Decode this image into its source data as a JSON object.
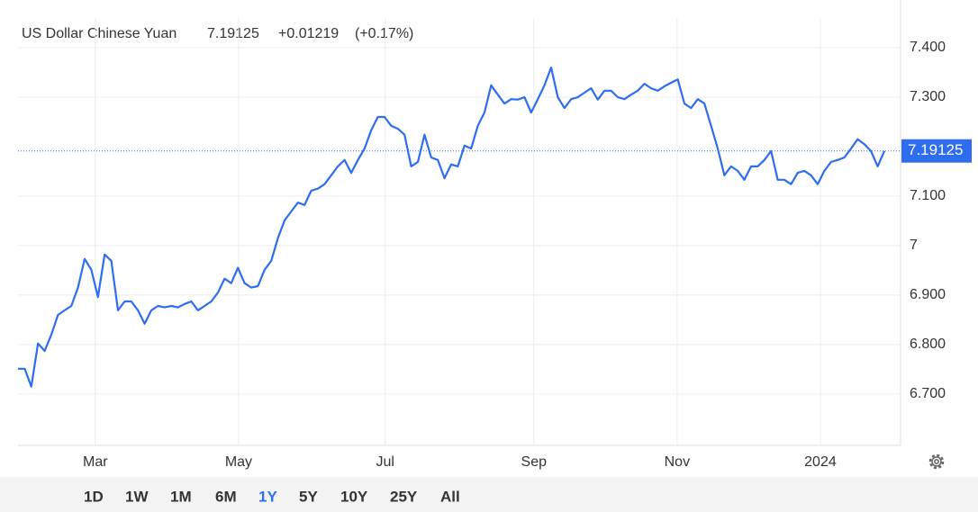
{
  "chart_data": {
    "type": "line",
    "title": "US Dollar Chinese Yuan",
    "change": "+0.01219",
    "change_percent": "(+0.17%)",
    "color": "#2f6df0",
    "change_color": "#3aa43a",
    "values": [
      6.751,
      6.751,
      6.715,
      6.802,
      6.787,
      6.82,
      6.86,
      6.869,
      6.878,
      6.915,
      6.973,
      6.951,
      6.896,
      6.982,
      6.969,
      6.869,
      6.887,
      6.887,
      6.869,
      6.842,
      6.869,
      6.878,
      6.875,
      6.878,
      6.875,
      6.882,
      6.887,
      6.869,
      6.878,
      6.887,
      6.905,
      6.933,
      6.924,
      6.955,
      6.924,
      6.915,
      6.918,
      6.951,
      6.969,
      7.015,
      7.051,
      7.069,
      7.087,
      7.082,
      7.111,
      7.115,
      7.124,
      7.142,
      7.16,
      7.173,
      7.147,
      7.173,
      7.196,
      7.233,
      7.26,
      7.26,
      7.242,
      7.236,
      7.224,
      7.16,
      7.169,
      7.224,
      7.178,
      7.173,
      7.136,
      7.164,
      7.16,
      7.202,
      7.196,
      7.242,
      7.269,
      7.324,
      7.305,
      7.287,
      7.296,
      7.295,
      7.3,
      7.269,
      7.296,
      7.324,
      7.36,
      7.3,
      7.278,
      7.296,
      7.3,
      7.309,
      7.318,
      7.295,
      7.313,
      7.313,
      7.3,
      7.296,
      7.305,
      7.313,
      7.327,
      7.318,
      7.313,
      7.322,
      7.329,
      7.336,
      7.287,
      7.278,
      7.296,
      7.287,
      7.242,
      7.196,
      7.142,
      7.16,
      7.151,
      7.133,
      7.16,
      7.16,
      7.173,
      7.191,
      7.133,
      7.133,
      7.124,
      7.147,
      7.151,
      7.142,
      7.124,
      7.151,
      7.169,
      7.173,
      7.178,
      7.196,
      7.215,
      7.205,
      7.191,
      7.16,
      7.19125
    ],
    "xlim": [
      0,
      130
    ],
    "xticks": [
      {
        "value": 11.6,
        "label": "Mar"
      },
      {
        "value": 33.1,
        "label": "May"
      },
      {
        "value": 55.1,
        "label": "Jul"
      },
      {
        "value": 77.4,
        "label": "Sep"
      },
      {
        "value": 98.9,
        "label": "Nov"
      },
      {
        "value": 120.4,
        "label": "2024"
      }
    ],
    "ylim": [
      6.596,
      7.46
    ],
    "yticks": [
      {
        "value": 6.7,
        "label": "6.700"
      },
      {
        "value": 6.8,
        "label": "6.800"
      },
      {
        "value": 6.9,
        "label": "6.900"
      },
      7,
      {
        "value": 7.1,
        "label": "7.100"
      },
      {
        "value": 7.3,
        "label": "7.300"
      },
      {
        "value": 7.4,
        "label": "7.400"
      }
    ],
    "grid": true,
    "ranges": [
      "1D",
      "1W",
      "1M",
      "6M",
      "1Y",
      "5Y",
      "10Y",
      "25Y",
      "All"
    ],
    "active_range": 4
  }
}
